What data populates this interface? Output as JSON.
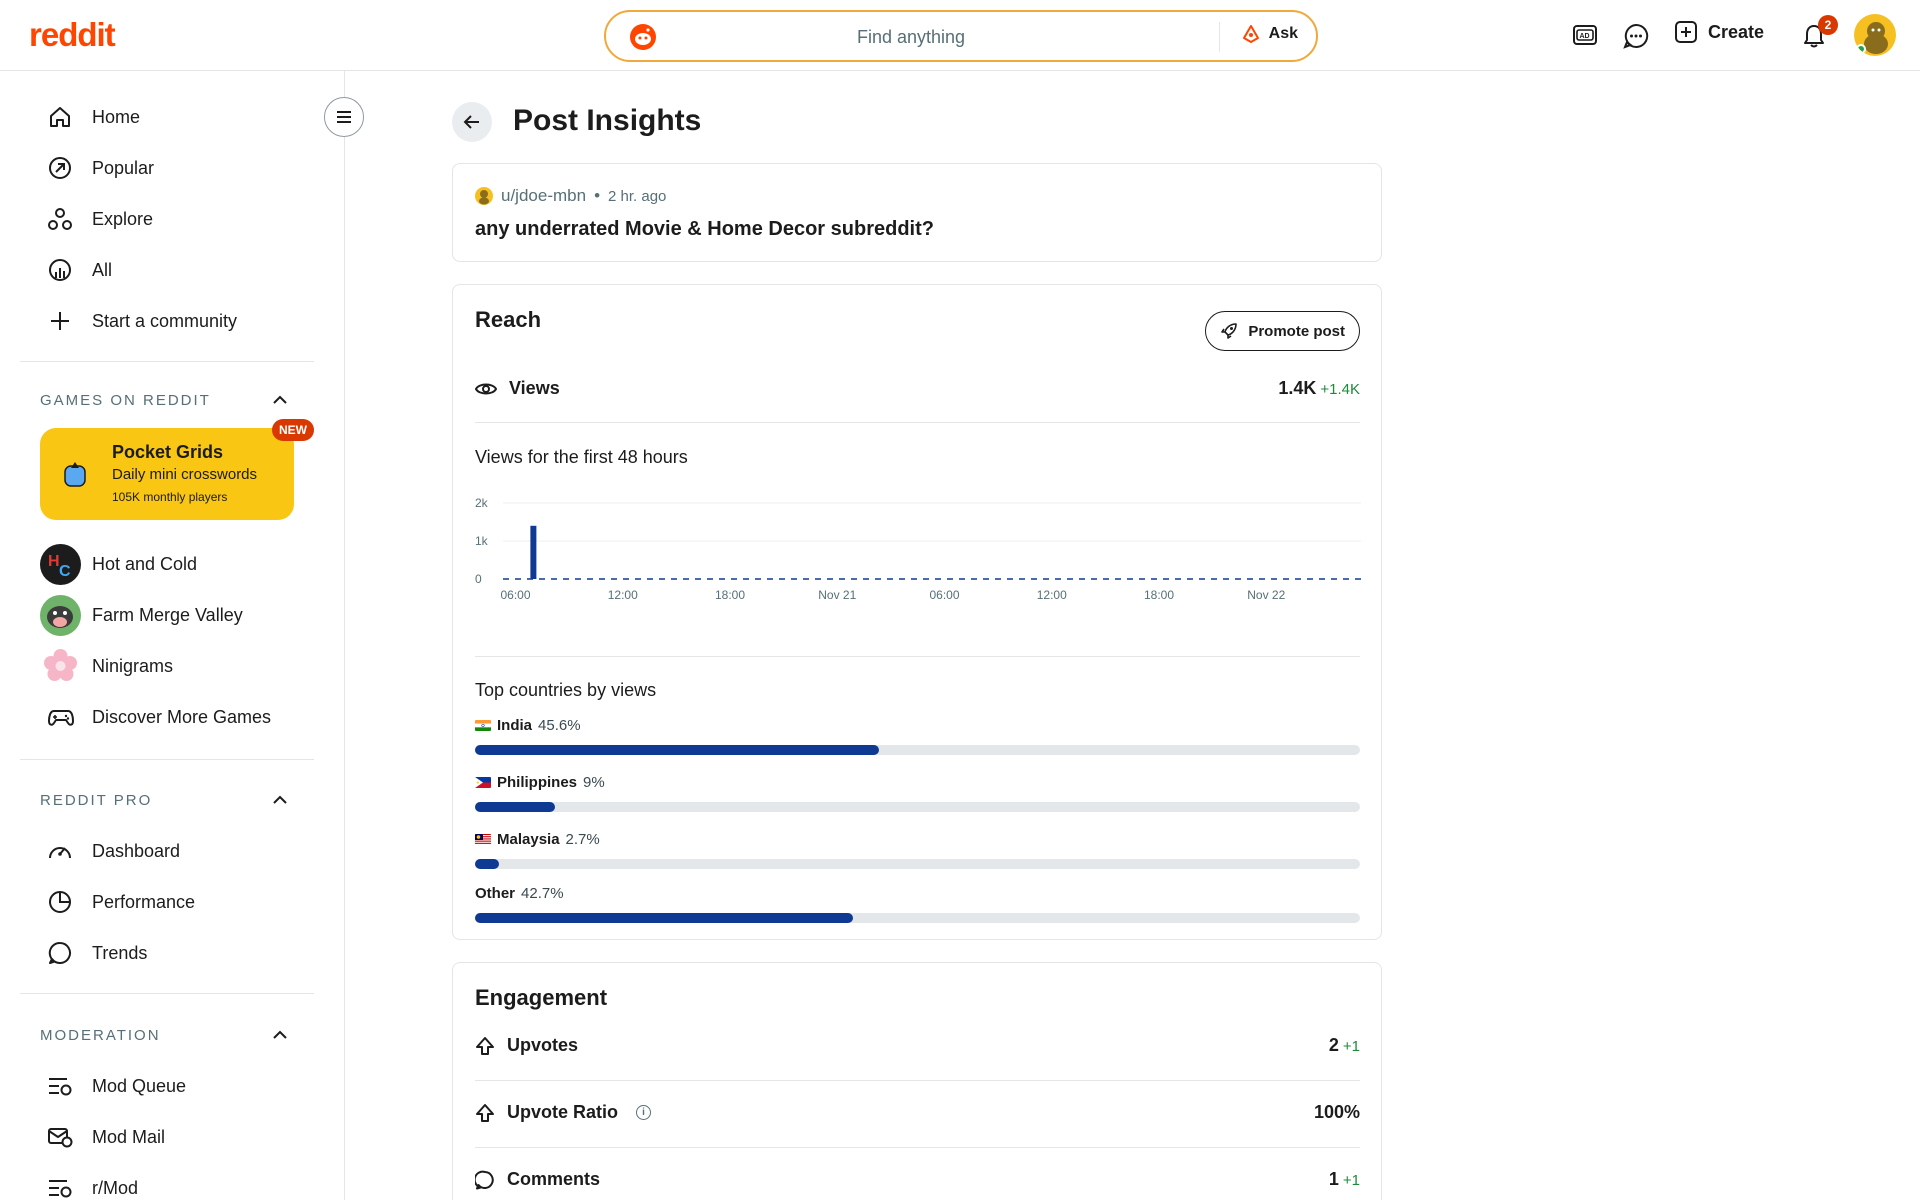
{
  "header": {
    "logo": "reddit",
    "search_placeholder": "Find anything",
    "ask_label": "Ask",
    "create_label": "Create",
    "notification_count": "2",
    "icons": [
      "advertise-icon",
      "chat-icon",
      "create-plus-icon",
      "bell-icon"
    ]
  },
  "sidebar": {
    "nav": [
      {
        "label": "Home",
        "icon": "home-icon"
      },
      {
        "label": "Popular",
        "icon": "popular-icon"
      },
      {
        "label": "Explore",
        "icon": "explore-icon"
      },
      {
        "label": "All",
        "icon": "all-icon"
      },
      {
        "label": "Start a community",
        "icon": "plus-icon"
      }
    ],
    "games_title": "GAMES ON REDDIT",
    "featured_game": {
      "title": "Pocket Grids",
      "subtitle": "Daily mini crosswords",
      "players": "105K monthly players",
      "badge": "NEW"
    },
    "games": [
      {
        "label": "Hot and Cold"
      },
      {
        "label": "Farm Merge Valley"
      },
      {
        "label": "Ninigrams"
      },
      {
        "label": "Discover More Games"
      }
    ],
    "pro_title": "REDDIT PRO",
    "pro": [
      {
        "label": "Dashboard",
        "icon": "dashboard-icon"
      },
      {
        "label": "Performance",
        "icon": "performance-icon"
      },
      {
        "label": "Trends",
        "icon": "trends-icon"
      }
    ],
    "mod_title": "MODERATION",
    "mod": [
      {
        "label": "Mod Queue",
        "icon": "mod-queue-icon"
      },
      {
        "label": "Mod Mail",
        "icon": "mod-mail-icon"
      },
      {
        "label": "r/Mod",
        "icon": "rmod-icon"
      }
    ]
  },
  "main": {
    "title": "Post Insights",
    "post": {
      "author": "u/jdoe-mbn",
      "separator": "•",
      "time": "2 hr. ago",
      "title": "any underrated Movie & Home Decor subreddit?"
    },
    "reach": {
      "title": "Reach",
      "promote_label": "Promote post",
      "views_label": "Views",
      "views_value": "1.4K",
      "views_delta": "+1.4K",
      "chart_title": "Views for the first 48 hours",
      "countries_title": "Top countries by views",
      "countries": [
        {
          "name": "India",
          "pct_label": "45.6%",
          "pct": 45.6
        },
        {
          "name": "Philippines",
          "pct_label": "9%",
          "pct": 9
        },
        {
          "name": "Malaysia",
          "pct_label": "2.7%",
          "pct": 2.7
        },
        {
          "name": "Other",
          "pct_label": "42.7%",
          "pct": 42.7
        }
      ]
    },
    "engagement": {
      "title": "Engagement",
      "rows": [
        {
          "label": "Upvotes",
          "value": "2",
          "delta": "+1"
        },
        {
          "label": "Upvote Ratio",
          "value": "100%",
          "delta": ""
        },
        {
          "label": "Comments",
          "value": "1",
          "delta": "+1"
        }
      ]
    }
  },
  "chart_data": {
    "type": "bar",
    "title": "Views for the first 48 hours",
    "x_tick_labels": [
      "06:00",
      "12:00",
      "18:00",
      "Nov 21",
      "06:00",
      "12:00",
      "18:00",
      "Nov 22"
    ],
    "y_tick_labels": [
      "0",
      "1k",
      "2k"
    ],
    "ylim": [
      0,
      2000
    ],
    "bars": [
      {
        "x": "07:00",
        "value": 1400
      }
    ],
    "baseline": "dashed",
    "color": "#0f3a94"
  },
  "colors": {
    "brand": "#ff4500",
    "bar": "#0f3a94",
    "track": "#e3e7ea",
    "delta": "#1e8a3c",
    "game_card": "#f9c614"
  }
}
